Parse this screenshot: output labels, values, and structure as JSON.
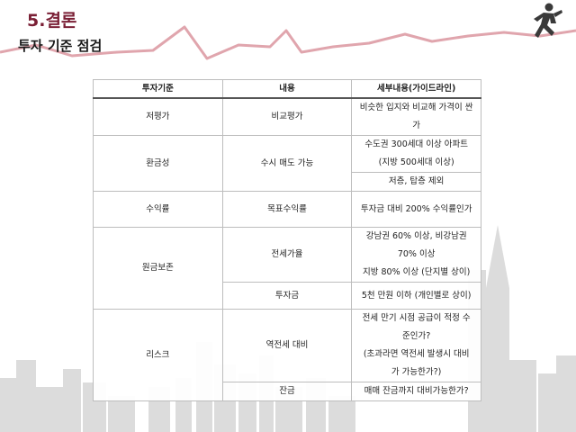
{
  "header": {
    "section_title": "5.결론",
    "sub_title": "투자 기준 점검"
  },
  "icons": {
    "runner": "running-businessman-icon"
  },
  "colors": {
    "accent": "#7a1f35",
    "deco_line": "#e0a5ad",
    "skyline": "#d9d9d9"
  },
  "table": {
    "headers": [
      "투자기준",
      "내용",
      "세부내용(가이드라인)"
    ],
    "row1": {
      "criterion": "저평가",
      "content": "비교평가",
      "detail": [
        "비슷한 입지와 비교해 가격이 싼",
        "가"
      ]
    },
    "row2": {
      "criterion": "환금성",
      "content": "수시 매도 가능",
      "detail_a": [
        "수도권 300세대 이상 아파트",
        "(지방 500세대 이상)"
      ],
      "detail_b": "저층, 탑층 제외"
    },
    "row3": {
      "criterion": "수익률",
      "content": "목표수익률",
      "detail": "투자금 대비 200% 수익률인가"
    },
    "row4": {
      "criterion": "원금보존",
      "content_a": "전세가율",
      "detail_a": [
        "강남권 60% 이상, 비강남권",
        "70% 이상",
        "지방 80% 이상 (단지별 상이)"
      ],
      "content_b": "투자금",
      "detail_b": "5천 만원 이하 (개인별로 상이)"
    },
    "row5": {
      "criterion": "리스크",
      "content_a": "역전세 대비",
      "detail_a": [
        "전세 만기 시점 공급이 적정 수",
        "준인가?",
        "(초과라면 역전세 발생시 대비",
        "가 가능한가?)"
      ],
      "content_b": "잔금",
      "detail_b": "매매 잔금까지 대비가능한가?"
    }
  }
}
